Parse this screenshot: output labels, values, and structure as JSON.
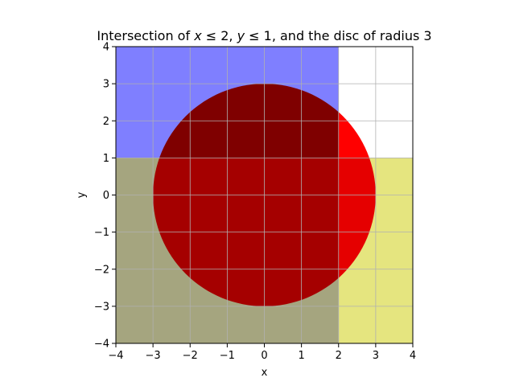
{
  "chart_data": {
    "type": "area",
    "title_parts": [
      "Intersection of ",
      "x",
      " ≤ 2, ",
      "y",
      " ≤ 1, and the disc of radius 3"
    ],
    "xlabel": "x",
    "ylabel": "y",
    "xlim": [
      -4,
      4
    ],
    "ylim": [
      -4,
      4
    ],
    "xticks": [
      -4,
      -3,
      -2,
      -1,
      0,
      1,
      2,
      3,
      4
    ],
    "yticks": [
      -4,
      -3,
      -2,
      -1,
      0,
      1,
      2,
      3,
      4
    ],
    "grid": true,
    "regions": [
      {
        "kind": "halfplane",
        "constraint": "x <= 2",
        "bound": 2,
        "color": "#0000ff",
        "alpha": 0.5
      },
      {
        "kind": "halfplane",
        "constraint": "y <= 1",
        "bound": 1,
        "color": "#cccc00",
        "alpha": 0.5
      },
      {
        "kind": "disc",
        "center": [
          0,
          0
        ],
        "radius": 3,
        "color": "#ff0000",
        "alpha": 1.0
      }
    ]
  }
}
